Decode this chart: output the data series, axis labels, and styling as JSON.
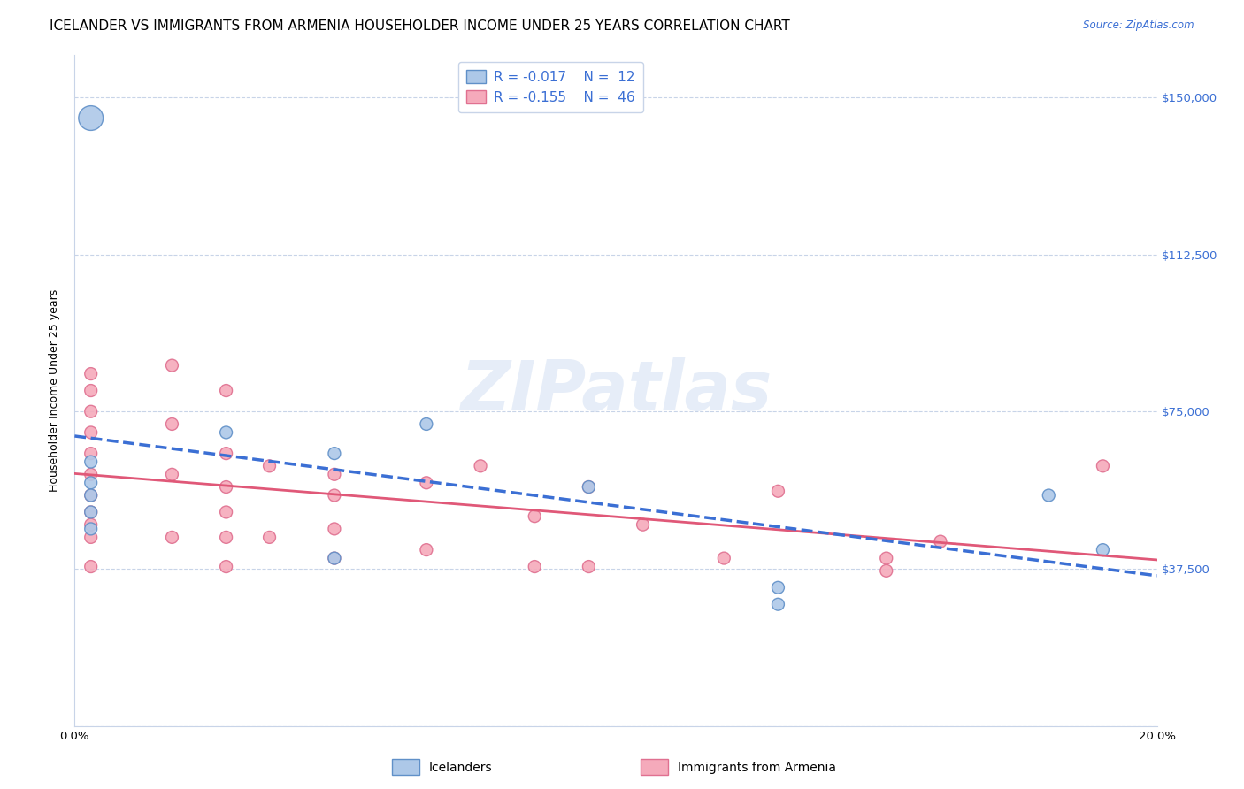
{
  "title": "ICELANDER VS IMMIGRANTS FROM ARMENIA HOUSEHOLDER INCOME UNDER 25 YEARS CORRELATION CHART",
  "source": "Source: ZipAtlas.com",
  "ylabel": "Householder Income Under 25 years",
  "xlim": [
    0.0,
    0.2
  ],
  "ylim": [
    0,
    160000
  ],
  "yticks": [
    0,
    37500,
    75000,
    112500,
    150000
  ],
  "ytick_labels": [
    "",
    "$37,500",
    "$75,000",
    "$112,500",
    "$150,000"
  ],
  "xticks": [
    0.0,
    0.02,
    0.04,
    0.06,
    0.08,
    0.1,
    0.12,
    0.14,
    0.16,
    0.18,
    0.2
  ],
  "blue_color": "#adc8e8",
  "pink_color": "#f5aabb",
  "blue_edge_color": "#6090c8",
  "pink_edge_color": "#e07090",
  "blue_line_color": "#3b6fd4",
  "pink_line_color": "#e05878",
  "watermark": "ZIPatlas",
  "blue_scatter_x": [
    0.003,
    0.003,
    0.003,
    0.003,
    0.003,
    0.003,
    0.028,
    0.048,
    0.048,
    0.065,
    0.095,
    0.13,
    0.13,
    0.18,
    0.19
  ],
  "blue_scatter_y": [
    145000,
    63000,
    58000,
    55000,
    51000,
    47000,
    70000,
    65000,
    40000,
    72000,
    57000,
    33000,
    29000,
    55000,
    42000
  ],
  "blue_scatter_sizes": [
    400,
    100,
    100,
    100,
    100,
    100,
    100,
    100,
    100,
    100,
    100,
    100,
    100,
    100,
    100
  ],
  "pink_scatter_x": [
    0.003,
    0.003,
    0.003,
    0.003,
    0.003,
    0.003,
    0.003,
    0.003,
    0.003,
    0.003,
    0.003,
    0.018,
    0.018,
    0.018,
    0.018,
    0.028,
    0.028,
    0.028,
    0.028,
    0.028,
    0.028,
    0.036,
    0.036,
    0.048,
    0.048,
    0.048,
    0.048,
    0.065,
    0.065,
    0.075,
    0.085,
    0.085,
    0.095,
    0.095,
    0.105,
    0.12,
    0.13,
    0.15,
    0.15,
    0.16,
    0.19
  ],
  "pink_scatter_y": [
    84000,
    80000,
    75000,
    70000,
    65000,
    60000,
    55000,
    51000,
    48000,
    45000,
    38000,
    86000,
    72000,
    60000,
    45000,
    80000,
    65000,
    57000,
    51000,
    45000,
    38000,
    62000,
    45000,
    60000,
    55000,
    47000,
    40000,
    58000,
    42000,
    62000,
    50000,
    38000,
    57000,
    38000,
    48000,
    40000,
    56000,
    40000,
    37000,
    44000,
    62000
  ],
  "pink_scatter_sizes": [
    100,
    100,
    100,
    100,
    100,
    100,
    100,
    100,
    100,
    100,
    100,
    100,
    100,
    100,
    100,
    100,
    100,
    100,
    100,
    100,
    100,
    100,
    100,
    100,
    100,
    100,
    100,
    100,
    100,
    100,
    100,
    100,
    100,
    100,
    100,
    100,
    100,
    100,
    100,
    100,
    100
  ],
  "title_fontsize": 11,
  "axis_label_fontsize": 9,
  "tick_fontsize": 9.5,
  "legend_fontsize": 11
}
